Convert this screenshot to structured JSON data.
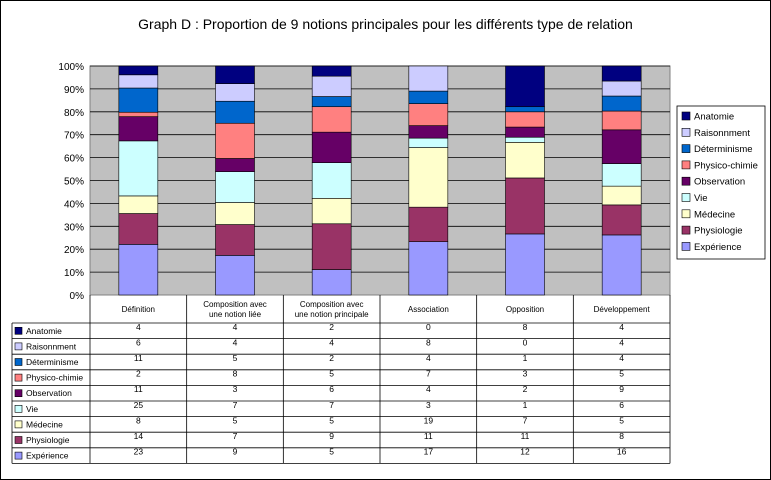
{
  "chart_data": {
    "type": "bar",
    "stacked": "percent",
    "title": "Graph D : Proportion de 9 notions principales pour les différents type de relation",
    "categories": [
      [
        "Définition"
      ],
      [
        "Composition avec",
        "une notion liée"
      ],
      [
        "Composition avec",
        "une notion principale"
      ],
      [
        "Association"
      ],
      [
        "Opposition"
      ],
      [
        "Développement"
      ]
    ],
    "y_ticks": [
      "0%",
      "10%",
      "20%",
      "30%",
      "40%",
      "50%",
      "60%",
      "70%",
      "80%",
      "90%",
      "100%"
    ],
    "ylim": [
      0,
      100
    ],
    "legend_position": "right",
    "data_table": true,
    "series": [
      {
        "name": "Expérience",
        "color": "#9999FF",
        "values": [
          23,
          9,
          5,
          17,
          12,
          16
        ]
      },
      {
        "name": "Physiologie",
        "color": "#993366",
        "values": [
          14,
          7,
          9,
          11,
          11,
          8
        ]
      },
      {
        "name": "Médecine",
        "color": "#FFFFCC",
        "values": [
          8,
          5,
          5,
          19,
          7,
          5
        ]
      },
      {
        "name": "Vie",
        "color": "#CCFFFF",
        "values": [
          25,
          7,
          7,
          3,
          1,
          6
        ]
      },
      {
        "name": "Observation",
        "color": "#660066",
        "values": [
          11,
          3,
          6,
          4,
          2,
          9
        ]
      },
      {
        "name": "Physico-chimie",
        "color": "#FF8080",
        "values": [
          2,
          8,
          5,
          7,
          3,
          5
        ]
      },
      {
        "name": "Déterminisme",
        "color": "#0066CC",
        "values": [
          11,
          5,
          2,
          4,
          1,
          4
        ]
      },
      {
        "name": "Raisonnment",
        "color": "#CCCCFF",
        "values": [
          6,
          4,
          4,
          8,
          0,
          4
        ]
      },
      {
        "name": "Anatomie",
        "color": "#000080",
        "values": [
          4,
          4,
          2,
          0,
          8,
          4
        ]
      }
    ]
  }
}
